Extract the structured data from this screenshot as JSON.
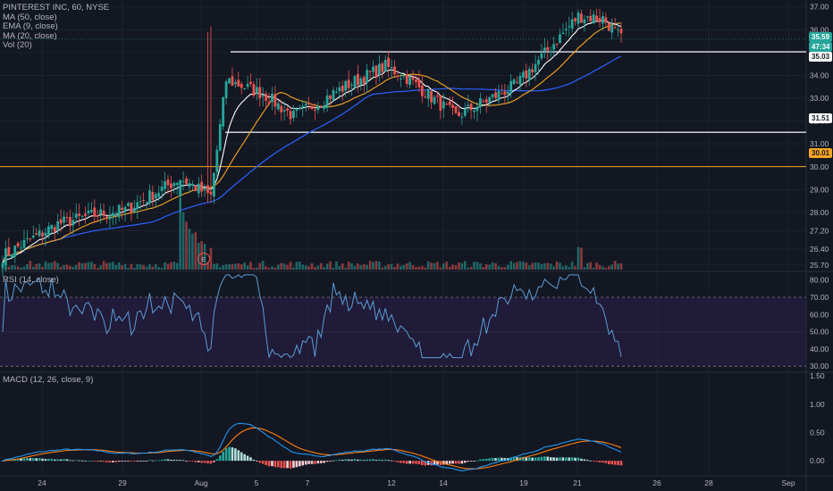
{
  "header": {
    "symbol": "PINTEREST INC, 60, NYSE",
    "indicators": [
      "MA (50, close)",
      "EMA (9, close)",
      "MA (20, close)",
      "Vol (20)"
    ]
  },
  "rsi_panel": {
    "label": "RSI (14, close)"
  },
  "macd_panel": {
    "label": "MACD (12, 26, close, 9)"
  },
  "earnings_marker": "E",
  "price_badges": {
    "last": "35.59",
    "countdown": "47:34",
    "level_high": "35.03",
    "level_mid": "31.51",
    "level_low": "30.01"
  },
  "colors": {
    "background": "#131722",
    "up": "#26a69a",
    "down": "#ef5350",
    "ema9": "#ffffff",
    "ma20": "#f5a623",
    "ma50": "#2962ff",
    "rsi": "#5b9bd5",
    "rsi_band": "#2b1f4a",
    "macd": "#2196f3",
    "signal": "#ff7f0e",
    "level_orange": "#f5a623"
  },
  "chart_data": [
    {
      "type": "candlestick",
      "title": "PINTEREST INC, 60, NYSE",
      "y_ticks": [
        "37.00",
        "36.00",
        "35.00",
        "34.00",
        "33.00",
        "32.00",
        "31.00",
        "30.00",
        "29.00",
        "28.00",
        "27.20",
        "26.40",
        "25.70"
      ],
      "x_ticks": [
        "24",
        "29",
        "Aug",
        "5",
        "7",
        "12",
        "14",
        "19",
        "21",
        "26",
        "28",
        "Sep"
      ],
      "ylim": [
        25.5,
        37.3
      ],
      "horizontal_levels": [
        35.03,
        31.51,
        30.01
      ],
      "ohlc_waypoints": [
        {
          "x": "Jul 22",
          "close": 26.1
        },
        {
          "x": "Jul 24",
          "close": 27.5
        },
        {
          "x": "Jul 26",
          "close": 27.9
        },
        {
          "x": "Jul 29",
          "close": 28.1
        },
        {
          "x": "Jul 31",
          "close": 29.5
        },
        {
          "x": "Aug 1",
          "close": 28.7
        },
        {
          "x": "Aug 2",
          "close": 33.8
        },
        {
          "x": "Aug 5",
          "close": 33.2
        },
        {
          "x": "Aug 7",
          "close": 32.2
        },
        {
          "x": "Aug 9",
          "close": 33.6
        },
        {
          "x": "Aug 12",
          "close": 34.4
        },
        {
          "x": "Aug 13",
          "close": 33.9
        },
        {
          "x": "Aug 15",
          "close": 32.2
        },
        {
          "x": "Aug 19",
          "close": 33.6
        },
        {
          "x": "Aug 21",
          "close": 36.6
        },
        {
          "x": "Aug 22",
          "close": 36.5
        },
        {
          "x": "Aug 23",
          "close": 35.6
        }
      ]
    },
    {
      "type": "line",
      "title": "RSI (14, close)",
      "y_ticks": [
        "80.00",
        "70.00",
        "60.00",
        "50.00",
        "40.00",
        "30.00"
      ],
      "bands": [
        30,
        70
      ],
      "ylim": [
        27,
        84
      ]
    },
    {
      "type": "line",
      "title": "MACD (12, 26, close, 9)",
      "y_ticks": [
        "1.50",
        "1.00",
        "0.50",
        "0.00"
      ],
      "series": [
        {
          "name": "MACD"
        },
        {
          "name": "Signal"
        },
        {
          "name": "Histogram"
        }
      ],
      "ylim": [
        -0.25,
        1.55
      ]
    }
  ]
}
